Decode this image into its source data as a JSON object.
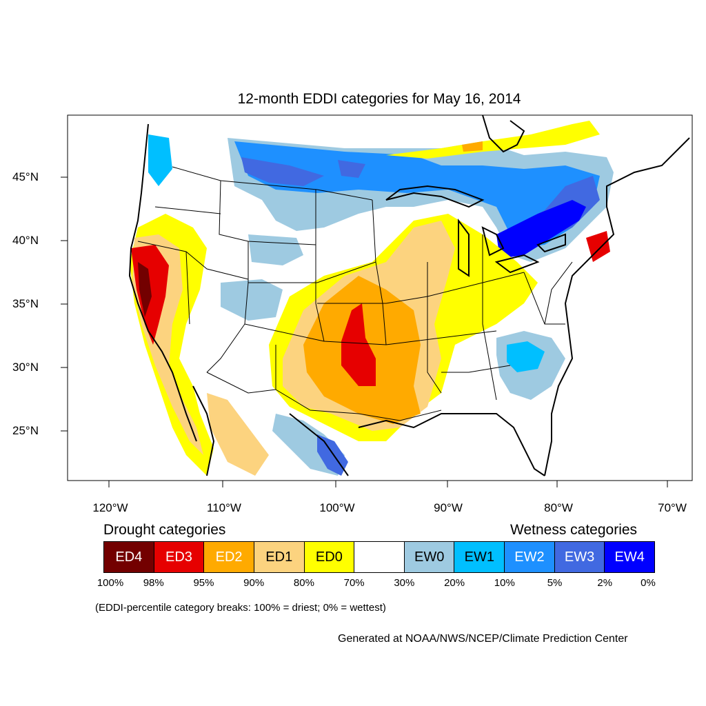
{
  "title": "12-month EDDI categories for May 16, 2014",
  "axes": {
    "lon_labels": [
      "120°W",
      "110°W",
      "100°W",
      "90°W",
      "80°W",
      "70°W"
    ],
    "lat_labels": [
      "45°N",
      "40°N",
      "35°N",
      "30°N",
      "25°N"
    ]
  },
  "legend": {
    "drought_heading": "Drought categories",
    "wetness_heading": "Wetness categories",
    "categories": [
      {
        "label": "ED4",
        "color": "#730000",
        "text_color": "#ffffff"
      },
      {
        "label": "ED3",
        "color": "#e60000",
        "text_color": "#ffffff"
      },
      {
        "label": "ED2",
        "color": "#ffaa00",
        "text_color": "#ffffff"
      },
      {
        "label": "ED1",
        "color": "#fcd37f",
        "text_color": "#000000"
      },
      {
        "label": "ED0",
        "color": "#ffff00",
        "text_color": "#000000"
      },
      {
        "label": "",
        "color": "#ffffff",
        "text_color": "#000000"
      },
      {
        "label": "EW0",
        "color": "#9ecae1",
        "text_color": "#000000"
      },
      {
        "label": "EW1",
        "color": "#00bfff",
        "text_color": "#000000"
      },
      {
        "label": "EW2",
        "color": "#1e90ff",
        "text_color": "#ffffff"
      },
      {
        "label": "EW3",
        "color": "#4169e1",
        "text_color": "#ffffff"
      },
      {
        "label": "EW4",
        "color": "#0000ff",
        "text_color": "#ffffff"
      }
    ],
    "percentiles": [
      "100%",
      "98%",
      "95%",
      "90%",
      "80%",
      "70%",
      "30%",
      "20%",
      "10%",
      "5%",
      "2%",
      "0%"
    ]
  },
  "note": "(EDDI-percentile category breaks: 100% = driest; 0% = wettest)",
  "credit": "Generated at NOAA/NWS/NCEP/Climate Prediction Center"
}
